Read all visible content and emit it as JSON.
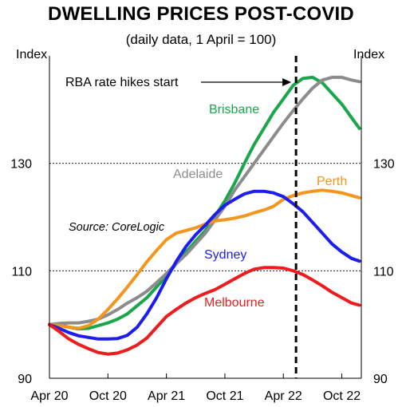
{
  "chart_data": {
    "type": "line",
    "title": "DWELLING PRICES POST-COVID",
    "subtitle": "(daily data, 1 April = 100)",
    "ylabel_left": "Index",
    "ylabel_right": "Index",
    "ylim": [
      90,
      150
    ],
    "y_ticks": [
      90,
      110,
      130
    ],
    "x_ticks": [
      {
        "label": "Apr 20",
        "month": 0
      },
      {
        "label": "Oct 20",
        "month": 6
      },
      {
        "label": "Apr 21",
        "month": 12
      },
      {
        "label": "Oct 21",
        "month": 18
      },
      {
        "label": "Apr 22",
        "month": 24
      },
      {
        "label": "Oct 22",
        "month": 30
      }
    ],
    "x_range_months": [
      0,
      32
    ],
    "grid": "dotted horizontal at 110 and 130",
    "annotations": {
      "rate_hikes": "RBA rate hikes start",
      "rate_hikes_month": 25.3,
      "source": "Source: CoreLogic"
    },
    "series": [
      {
        "name": "Brisbane",
        "color": "#1aa64a",
        "x": [
          0,
          1,
          2,
          3,
          4,
          5,
          6,
          7,
          8,
          9,
          10,
          11,
          12,
          13,
          14,
          15,
          16,
          17,
          18,
          19,
          20,
          21,
          22,
          23,
          24,
          25,
          26,
          27,
          28,
          29,
          30,
          31,
          31.8
        ],
        "y": [
          100,
          100,
          99.5,
          99.2,
          99.3,
          99.8,
          100.3,
          101,
          102,
          103.5,
          105,
          107,
          109,
          111.3,
          113.5,
          115.5,
          117.5,
          120.2,
          123,
          126.3,
          130,
          133.5,
          136.5,
          139.5,
          142,
          144.5,
          145.8,
          146,
          145,
          143,
          141,
          138.5,
          136.5
        ]
      },
      {
        "name": "Adelaide",
        "color": "#8c8c8c",
        "x": [
          0,
          1,
          2,
          3,
          4,
          5,
          6,
          7,
          8,
          9,
          10,
          11,
          12,
          13,
          14,
          15,
          16,
          17,
          18,
          19,
          20,
          21,
          22,
          23,
          24,
          25,
          26,
          27,
          28,
          29,
          30,
          31,
          31.8
        ],
        "y": [
          100,
          100.2,
          100.3,
          100.3,
          100.6,
          101,
          101.8,
          102.8,
          104,
          105,
          106.2,
          107.8,
          109.5,
          111.3,
          113,
          115,
          117,
          119.5,
          122,
          125,
          127.5,
          130,
          132.5,
          135,
          137.5,
          139.8,
          142,
          144,
          145.5,
          146,
          146,
          145.5,
          145.2
        ]
      },
      {
        "name": "Perth",
        "color": "#f5951e",
        "x": [
          0,
          1,
          2,
          3,
          4,
          5,
          6,
          7,
          8,
          9,
          10,
          11,
          12,
          13,
          14,
          15,
          16,
          17,
          18,
          19,
          20,
          21,
          22,
          23,
          24,
          25,
          26,
          27,
          28,
          29,
          30,
          31,
          31.8
        ],
        "y": [
          100,
          99.8,
          99.5,
          99.3,
          99.8,
          101,
          102.8,
          104.8,
          107,
          109.3,
          111.7,
          113.8,
          115.8,
          117,
          117.5,
          118,
          118.7,
          119.3,
          119.5,
          119.8,
          120.2,
          120.8,
          121.3,
          122,
          123.3,
          124,
          124.5,
          124.8,
          125,
          124.8,
          124.5,
          124,
          123.6
        ]
      },
      {
        "name": "Sydney",
        "color": "#1d1df0",
        "x": [
          0,
          1,
          2,
          3,
          4,
          5,
          6,
          7,
          8,
          9,
          10,
          11,
          12,
          13,
          14,
          15,
          16,
          17,
          18,
          19,
          20,
          21,
          22,
          23,
          24,
          25,
          26,
          27,
          28,
          29,
          30,
          31,
          31.8
        ],
        "y": [
          100,
          99.3,
          98.5,
          97.9,
          97.6,
          97.3,
          97.3,
          97.4,
          98,
          99.5,
          102,
          105,
          108.5,
          111.7,
          114.5,
          116.7,
          118.5,
          120.5,
          122.2,
          123.3,
          124.3,
          124.8,
          124.8,
          124.5,
          123.8,
          122.5,
          121,
          119,
          117,
          115,
          113.5,
          112.3,
          111.8
        ]
      },
      {
        "name": "Melbourne",
        "color": "#ee1c1c",
        "x": [
          0,
          1,
          2,
          3,
          4,
          5,
          6,
          7,
          8,
          9,
          10,
          11,
          12,
          13,
          14,
          15,
          16,
          17,
          18,
          19,
          20,
          21,
          22,
          23,
          24,
          25,
          26,
          27,
          28,
          29,
          30,
          31,
          31.8
        ],
        "y": [
          100,
          98.7,
          97.3,
          96.3,
          95.5,
          94.8,
          94.5,
          94.7,
          95.3,
          96.2,
          97.5,
          99.5,
          101.5,
          102.8,
          104,
          105,
          105.8,
          106.5,
          107.5,
          108.5,
          109.5,
          110.3,
          110.6,
          110.6,
          110.5,
          110,
          109.3,
          108.3,
          107.2,
          106,
          105,
          104,
          103.6
        ]
      }
    ],
    "series_labels": [
      "Brisbane",
      "Adelaide",
      "Perth",
      "Sydney",
      "Melbourne"
    ]
  }
}
